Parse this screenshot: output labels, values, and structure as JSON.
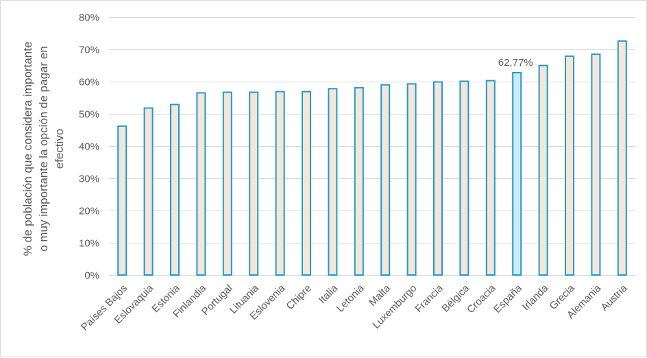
{
  "chart_data": {
    "type": "bar",
    "title": "",
    "xlabel": "",
    "ylabel_lines": [
      "% de población que considera importante",
      "o muy importante la opción de pagar en",
      "efectivo"
    ],
    "ylim": [
      0,
      80
    ],
    "yticks": [
      0,
      10,
      20,
      30,
      40,
      50,
      60,
      70,
      80
    ],
    "ytick_labels": [
      "0%",
      "10%",
      "20%",
      "30%",
      "40%",
      "50%",
      "60%",
      "70%",
      "80%"
    ],
    "grid": "horizontal",
    "categories": [
      "Países Bajos",
      "Eslovaquia",
      "Estonia",
      "Finlandia",
      "Portugal",
      "Lituania",
      "Eslovenia",
      "Chipre",
      "Italia",
      "Letonia",
      "Malta",
      "Luxemburgo",
      "Francia",
      "Bélgica",
      "Croacia",
      "España",
      "Irlanda",
      "Grecia",
      "Alemania",
      "Austria"
    ],
    "values": [
      46.2,
      51.8,
      52.9,
      56.5,
      56.7,
      56.7,
      56.9,
      56.9,
      57.8,
      58.1,
      59.0,
      59.3,
      59.9,
      60.1,
      60.3,
      62.77,
      65.0,
      67.9,
      68.5,
      72.6
    ],
    "highlight_index": 15,
    "highlight_label": "62,77%",
    "colors": {
      "bar_fill": "#f4e6d9",
      "highlight_fill": "#cdeaf8",
      "bar_stroke": "#1f9bcf"
    }
  }
}
